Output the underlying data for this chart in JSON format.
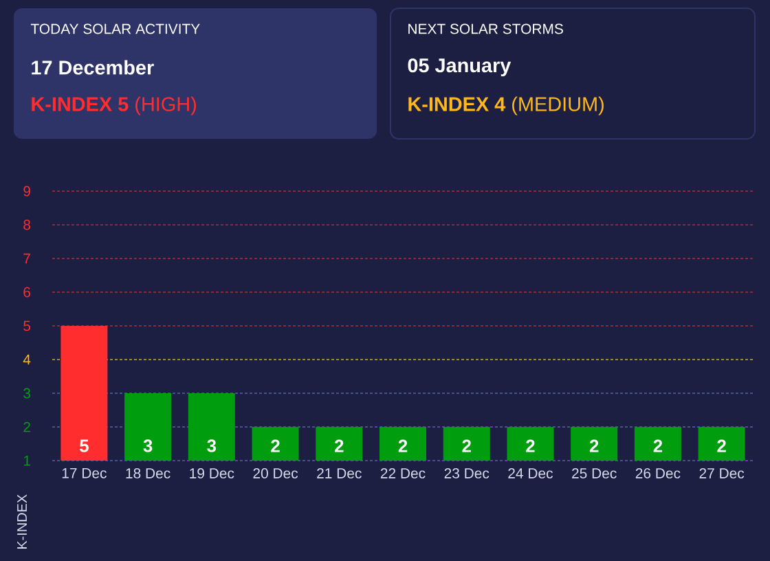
{
  "chart_data": {
    "type": "bar",
    "annotations": [
      "TODAY SOLAR ACTIVITY",
      "17 December",
      "**K-INDEX 5** (HIGH)",
      "NEXT SOLAR STORMS",
      "05 January",
      "**K-INDEX 4** (MEDIUM)"
    ],
    "ylabel": "K-INDEX",
    "categories": [
      "17 Dec",
      "18 Dec",
      "19 Dec",
      "20 Dec",
      "21 Dec",
      "22 Dec",
      "23 Dec",
      "24 Dec",
      "25 Dec",
      "26 Dec",
      "27 Dec"
    ],
    "values": [
      5,
      3,
      3,
      2,
      2,
      2,
      2,
      2,
      2,
      2,
      2
    ],
    "colors": [
      "#ff2d2d",
      "#009e0f",
      "#009e0f",
      "#009e0f",
      "#009e0f",
      "#009e0f",
      "#009e0f",
      "#009e0f",
      "#009e0f",
      "#009e0f",
      "#009e0f"
    ],
    "data_labels": true,
    "ylim": [
      1,
      9
    ],
    "yticks": [
      1,
      2,
      3,
      4,
      5,
      6,
      7,
      8,
      9
    ],
    "grid": "y",
    "ref_lines": [
      {
        "axis": "y",
        "value": 4,
        "color": "#9a8a2a",
        "line_style": "dotted"
      }
    ]
  }
}
